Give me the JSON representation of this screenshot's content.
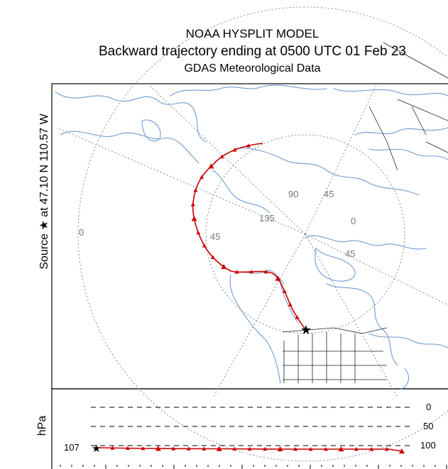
{
  "title": {
    "line1": "NOAA HYSPLIT MODEL",
    "line2": "Backward trajectory ending at 0500 UTC 01 Feb 23",
    "line3": "GDAS Meteorological Data"
  },
  "source_label": "Source ★ at 47.10 N 110.57 W",
  "grid_labels": [
    "0",
    "90",
    "45",
    "135",
    "0",
    "45",
    "45"
  ],
  "vertical_panel": {
    "axis_label": "hPa",
    "levels": [
      "0",
      "50",
      "100"
    ],
    "start_value": "107"
  },
  "colors": {
    "trajectory": "#cc0000",
    "coastline": "#6f9ad0",
    "grid": "#888888"
  },
  "trajectory": {
    "lat_lon_source": {
      "lat": 47.1,
      "lon": -110.57
    },
    "marker": "triangle",
    "source_marker": "star"
  }
}
